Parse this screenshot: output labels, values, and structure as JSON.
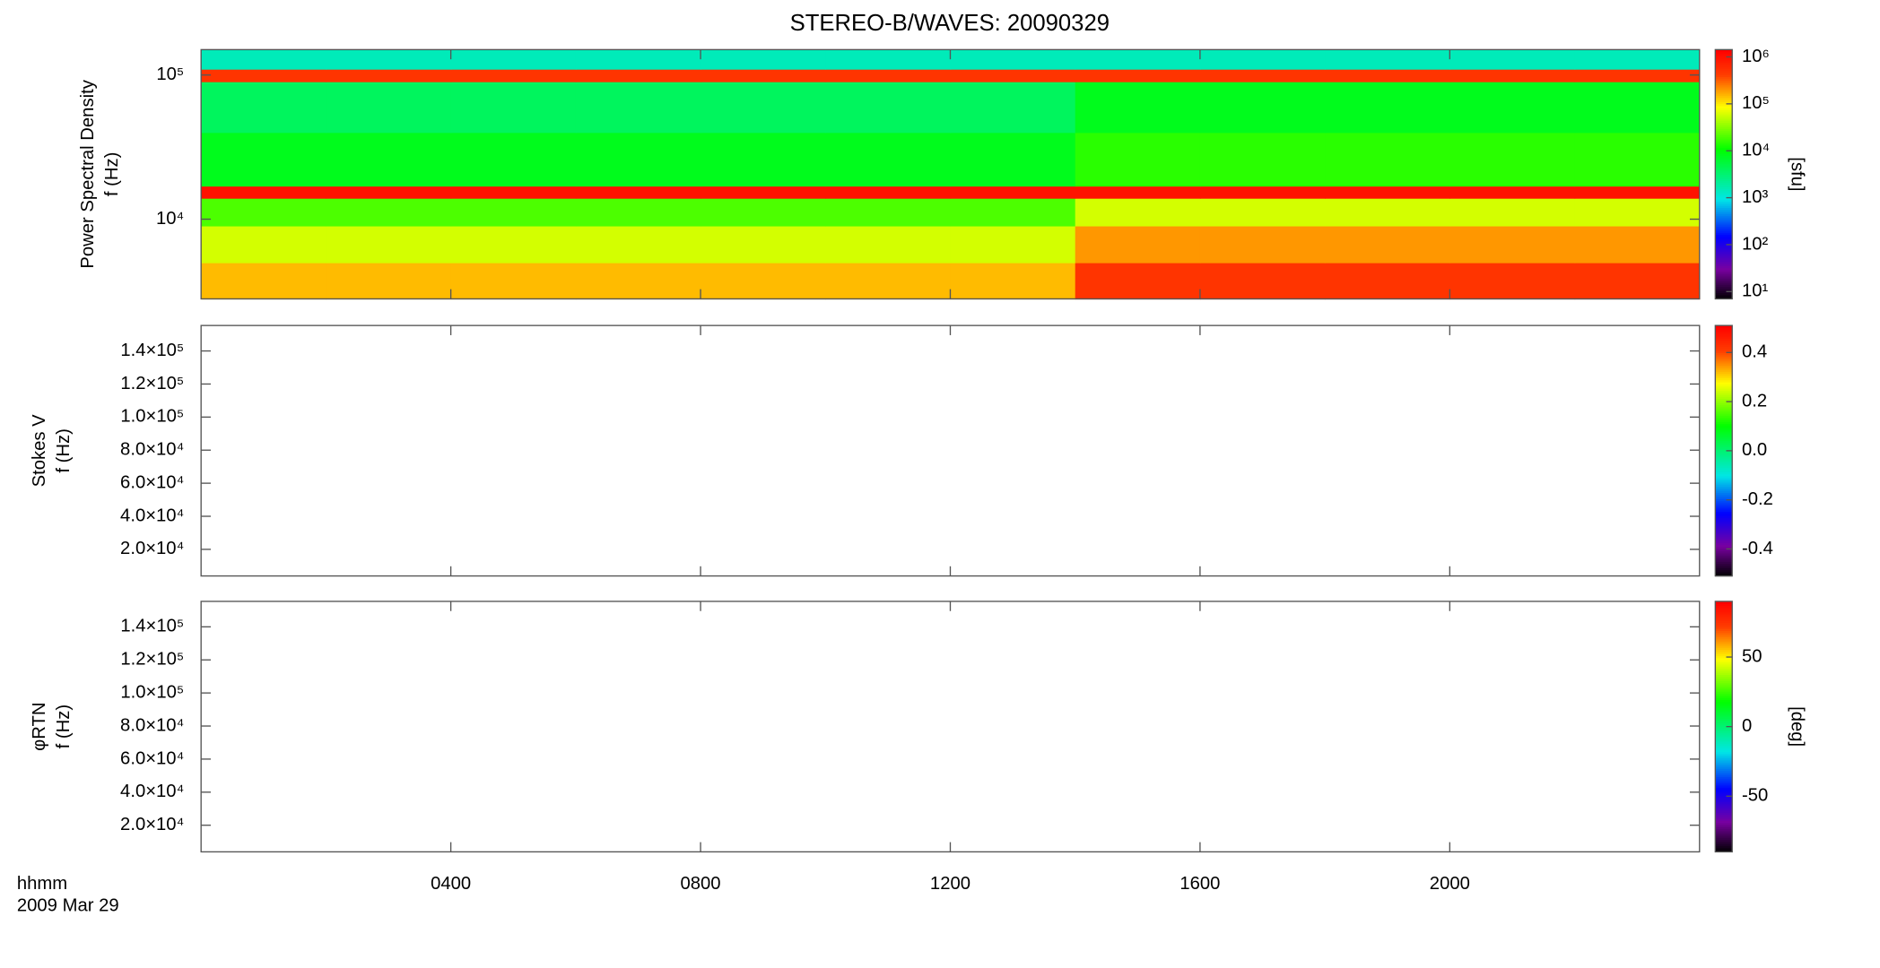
{
  "chart_data": [
    {
      "type": "heatmap",
      "title": "STEREO-B/WAVES: 20090329",
      "ylabel_lines": [
        "Power Spectral Density",
        "f (Hz)"
      ],
      "xlim": [
        0,
        24
      ],
      "xbins": [
        0,
        2,
        4,
        6,
        8,
        10,
        12,
        14,
        16,
        18,
        20,
        22,
        24
      ],
      "ybins": [
        2800,
        5000,
        9000,
        14000,
        17000,
        40000,
        90000,
        110000,
        150000
      ],
      "values": [
        [
          150000,
          150000,
          150000,
          150000,
          150000,
          150000,
          150000,
          500000,
          500000,
          500000,
          500000,
          500000
        ],
        [
          60000,
          60000,
          60000,
          60000,
          60000,
          60000,
          60000,
          200000,
          200000,
          200000,
          200000,
          200000
        ],
        [
          20000,
          20000,
          20000,
          20000,
          20000,
          20000,
          20000,
          60000,
          60000,
          60000,
          60000,
          60000
        ],
        [
          1000000,
          1000000,
          1000000,
          1000000,
          1000000,
          1000000,
          1000000,
          1000000,
          1000000,
          1000000,
          1000000,
          1000000
        ],
        [
          8000,
          8000,
          8000,
          8000,
          8000,
          8000,
          8000,
          15000,
          15000,
          15000,
          15000,
          15000
        ],
        [
          4000,
          4000,
          4000,
          4000,
          4000,
          4000,
          4000,
          8000,
          8000,
          8000,
          8000,
          8000
        ],
        [
          500000,
          500000,
          500000,
          500000,
          500000,
          500000,
          500000,
          500000,
          500000,
          500000,
          500000,
          500000
        ],
        [
          1500,
          1500,
          1500,
          1500,
          1500,
          1500,
          1500,
          1500,
          1500,
          1500,
          1500,
          1500
        ]
      ],
      "ylog": true,
      "ylim": [
        2800,
        150000
      ],
      "yticks": [
        {
          "value": 10000,
          "label": "10⁴"
        },
        {
          "value": 100000,
          "label": "10⁵"
        }
      ],
      "colormap": "rainbow",
      "clog": true,
      "clim": [
        7,
        1430000
      ],
      "cticks": [
        {
          "value": 10,
          "label": "10¹"
        },
        {
          "value": 100,
          "label": "10²"
        },
        {
          "value": 1000,
          "label": "10³"
        },
        {
          "value": 10000,
          "label": "10⁴"
        },
        {
          "value": 100000,
          "label": "10⁵"
        },
        {
          "value": 1000000,
          "label": "10⁶"
        }
      ],
      "clabel": "[sfu]"
    },
    {
      "type": "heatmap",
      "ylabel_lines": [
        "Stokes V",
        "f (Hz)"
      ],
      "xlim": [
        0,
        24
      ],
      "ylog": false,
      "ylim": [
        3900,
        155400
      ],
      "yticks": [
        {
          "value": 20000,
          "label": "2.0×10⁴"
        },
        {
          "value": 40000,
          "label": "4.0×10⁴"
        },
        {
          "value": 60000,
          "label": "6.0×10⁴"
        },
        {
          "value": 80000,
          "label": "8.0×10⁴"
        },
        {
          "value": 100000,
          "label": "1.0×10⁵"
        },
        {
          "value": 120000,
          "label": "1.2×10⁵"
        },
        {
          "value": 140000,
          "label": "1.4×10⁵"
        }
      ],
      "colormap": "rainbow",
      "clog": false,
      "clim": [
        -0.51,
        0.51
      ],
      "cticks": [
        {
          "value": -0.4,
          "label": "-0.4"
        },
        {
          "value": -0.2,
          "label": "-0.2"
        },
        {
          "value": 0,
          "label": "0.0"
        },
        {
          "value": 0.2,
          "label": "0.2"
        },
        {
          "value": 0.4,
          "label": "0.4"
        }
      ]
    },
    {
      "type": "heatmap",
      "ylabel_lines": [
        "φRTN",
        "f (Hz)"
      ],
      "xlim": [
        0,
        24
      ],
      "ylog": false,
      "ylim": [
        3900,
        155400
      ],
      "yticks": [
        {
          "value": 20000,
          "label": "2.0×10⁴"
        },
        {
          "value": 40000,
          "label": "4.0×10⁴"
        },
        {
          "value": 60000,
          "label": "6.0×10⁴"
        },
        {
          "value": 80000,
          "label": "8.0×10⁴"
        },
        {
          "value": 100000,
          "label": "1.0×10⁵"
        },
        {
          "value": 120000,
          "label": "1.2×10⁵"
        },
        {
          "value": 140000,
          "label": "1.4×10⁵"
        }
      ],
      "colormap": "rainbow",
      "clog": false,
      "clim": [
        -90,
        90
      ],
      "cticks": [
        -50,
        0,
        50
      ],
      "clabel": "[deg]",
      "xlabel": "hhmm",
      "date_label": "2009 Mar 29",
      "xticks": [
        {
          "value": 4,
          "label": "0400"
        },
        {
          "value": 8,
          "label": "0800"
        },
        {
          "value": 12,
          "label": "1200"
        },
        {
          "value": 16,
          "label": "1600"
        },
        {
          "value": 20,
          "label": "2000"
        }
      ]
    }
  ]
}
